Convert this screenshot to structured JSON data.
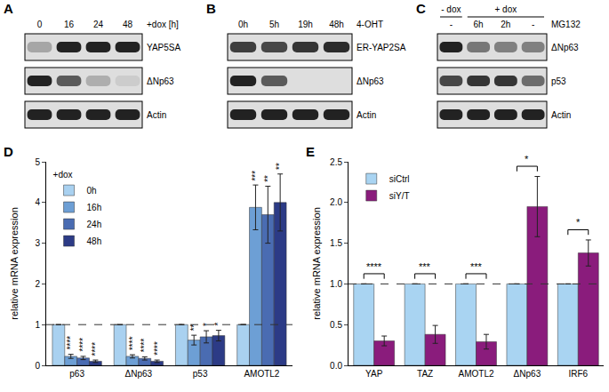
{
  "blots": [
    {
      "panel": "A",
      "header": "+dox [h]",
      "lanes": [
        "0",
        "16",
        "24",
        "48"
      ],
      "rows": [
        {
          "label": "YAP5SA",
          "intensity": [
            0.3,
            1.0,
            1.0,
            1.0
          ]
        },
        {
          "label": "ΔNp63",
          "intensity": [
            1.0,
            0.7,
            0.25,
            0.1
          ]
        },
        {
          "label": "Actin",
          "intensity": [
            1.0,
            1.0,
            1.0,
            1.0
          ]
        }
      ]
    },
    {
      "panel": "B",
      "header": "4-OHT",
      "lanes": [
        "0h",
        "5h",
        "19h",
        "48h"
      ],
      "rows": [
        {
          "label": "ER-YAP2SA",
          "intensity": [
            0.85,
            0.8,
            0.9,
            0.95
          ]
        },
        {
          "label": "ΔNp63",
          "intensity": [
            1.0,
            0.7,
            0.0,
            0.0
          ]
        },
        {
          "label": "Actin",
          "intensity": [
            1.0,
            1.0,
            1.0,
            1.0
          ]
        }
      ]
    },
    {
      "panel": "C",
      "header": "MG132",
      "lanes": [
        "-",
        "6h",
        "2h",
        "-"
      ],
      "groups": [
        {
          "label": "- dox",
          "lanes": [
            0
          ]
        },
        {
          "label": "+ dox",
          "lanes": [
            1,
            2,
            3
          ]
        }
      ],
      "rows": [
        {
          "label": "ΔNp63",
          "intensity": [
            1.0,
            0.55,
            0.5,
            0.5
          ]
        },
        {
          "label": "p53",
          "intensity": [
            0.8,
            0.9,
            0.9,
            0.6
          ]
        },
        {
          "label": "Actin",
          "intensity": [
            1.0,
            1.0,
            1.0,
            1.0
          ]
        }
      ]
    }
  ],
  "chart_data": [
    {
      "panel": "D",
      "type": "bar",
      "y_label": "relative mRNA expression",
      "categories": [
        "p63",
        "ΔNp63",
        "p53",
        "AMOTL2"
      ],
      "legend_title": "+dox",
      "legend": "upper left",
      "ylim": [
        0,
        5
      ],
      "yticks": [
        0,
        1,
        2,
        3,
        4,
        5
      ],
      "grid": false,
      "hline": 1,
      "series": [
        {
          "name": "0h",
          "color": "#a9d1f0",
          "values": [
            1,
            1,
            1,
            1
          ],
          "error": [
            0,
            0,
            0,
            0
          ],
          "significance": [
            null,
            null,
            null,
            null
          ]
        },
        {
          "name": "16h",
          "color": "#6d9fd5",
          "values": [
            0.22,
            0.22,
            0.62,
            3.88
          ],
          "error": [
            0.05,
            0.04,
            0.12,
            0.55
          ],
          "significance": [
            "****",
            "****",
            "**",
            "***"
          ]
        },
        {
          "name": "24h",
          "color": "#4a6cb2",
          "values": [
            0.18,
            0.17,
            0.7,
            3.7
          ],
          "error": [
            0.04,
            0.04,
            0.15,
            0.7
          ],
          "significance": [
            "****",
            "****",
            "*",
            "**"
          ]
        },
        {
          "name": "48h",
          "color": "#2c3b86",
          "values": [
            0.1,
            0.1,
            0.73,
            4.0
          ],
          "error": [
            0.03,
            0.03,
            0.13,
            0.7
          ],
          "significance": [
            "****",
            "****",
            "*",
            "**"
          ]
        }
      ]
    },
    {
      "panel": "E",
      "type": "bar",
      "y_label": "relative mRNA expression",
      "categories": [
        "YAP",
        "TAZ",
        "AMOTL2",
        "ΔNp63",
        "IRF6"
      ],
      "legend": "upper left",
      "ylim": [
        0,
        2.5
      ],
      "yticks": [
        {
          "value": 0,
          "label": "0.0"
        },
        {
          "value": 0.5,
          "label": "0.5"
        },
        {
          "value": 1,
          "label": "1.0"
        },
        {
          "value": 1.5,
          "label": "1.5"
        },
        {
          "value": 2,
          "label": "2.0"
        },
        {
          "value": 2.5,
          "label": "2.5"
        }
      ],
      "grid": false,
      "hline": 1,
      "comparisons": [
        "****",
        "***",
        "***",
        "*",
        "*"
      ],
      "series": [
        {
          "name": "siCtrl",
          "color": "#a9d4f2",
          "values": [
            1,
            1,
            1,
            1,
            1
          ],
          "error": [
            0,
            0,
            0,
            0,
            0
          ]
        },
        {
          "name": "siY/T",
          "color": "#8a1c7c",
          "values": [
            0.3,
            0.38,
            0.29,
            1.95,
            1.38
          ],
          "error": [
            0.06,
            0.11,
            0.09,
            0.37,
            0.16
          ]
        }
      ]
    }
  ]
}
